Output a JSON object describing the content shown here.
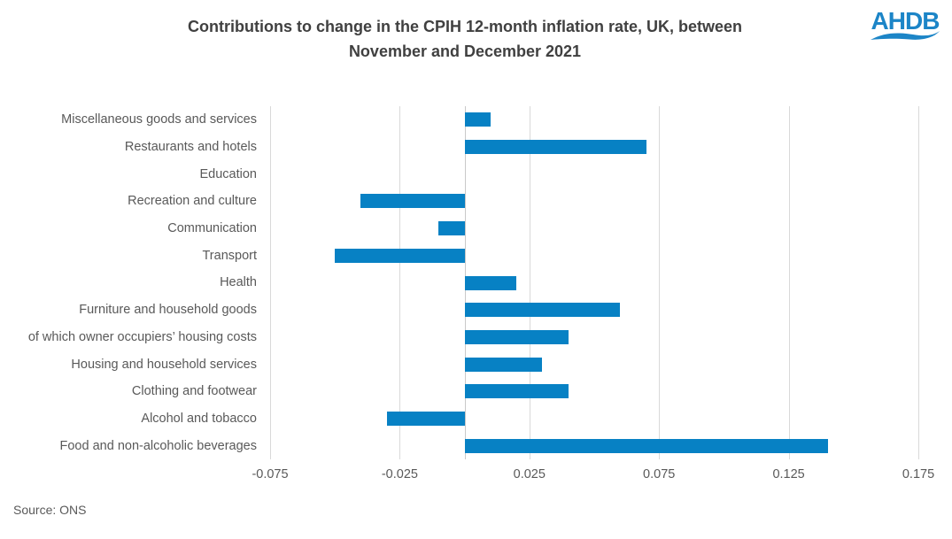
{
  "header": {
    "title_lines": [
      "Contributions to change in the CPIH 12-month inflation rate, UK, between",
      "November and December 2021"
    ],
    "logo_text": "AHDB"
  },
  "chart_data": {
    "type": "bar",
    "orientation": "horizontal",
    "title": "Contributions to change in the CPIH 12-month inflation rate, UK, between November and December 2021",
    "categories": [
      "Miscellaneous goods and services",
      "Restaurants and hotels",
      "Education",
      "Recreation and culture",
      "Communication",
      "Transport",
      "Health",
      "Furniture and household goods",
      "of which owner occupiers’ housing costs",
      "Housing and household services",
      "Clothing and footwear",
      "Alcohol and tobacco",
      "Food and non-alcoholic beverages"
    ],
    "values": [
      0.01,
      0.07,
      0,
      -0.04,
      -0.01,
      -0.05,
      0.02,
      0.06,
      0.04,
      0.03,
      0.04,
      -0.03,
      0.14
    ],
    "xlim": [
      -0.075,
      0.175
    ],
    "xticks": [
      -0.075,
      -0.025,
      0.025,
      0.075,
      0.125,
      0.175
    ],
    "xtick_labels": [
      "-0.075",
      "-0.025",
      "0.025",
      "0.075",
      "0.125",
      "0.175"
    ],
    "grid": true,
    "legend": false,
    "xlabel": "",
    "ylabel": ""
  },
  "footer": {
    "source": "Source: ONS"
  },
  "colors": {
    "bar": "#0781C4",
    "gridline": "#D9D9D9",
    "zero_line": "#C9C9C9",
    "title_text": "#404040",
    "body_text": "#595959",
    "logo_blue": "#1C85C7"
  }
}
